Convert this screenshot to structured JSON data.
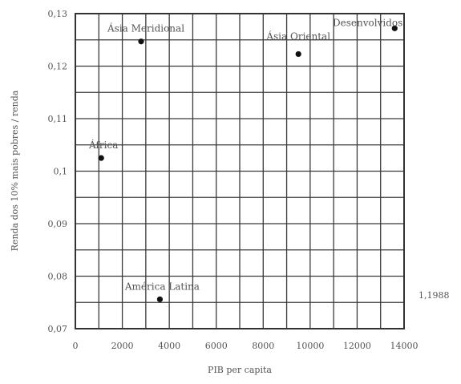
{
  "chart_data": {
    "type": "scatter",
    "title": "",
    "xlabel": "PIB per capita",
    "ylabel": "Renda dos 10% mais pobres / renda",
    "xlim": [
      0,
      14000
    ],
    "ylim": [
      0.07,
      0.13
    ],
    "x_ticks": [
      0,
      2000,
      4000,
      6000,
      8000,
      10000,
      12000,
      14000
    ],
    "x_tick_labels": [
      "0",
      "2000",
      "4000",
      "6000",
      "8000",
      "10000",
      "12000",
      "14000"
    ],
    "y_ticks": [
      0.07,
      0.08,
      0.09,
      0.1,
      0.11,
      0.12,
      0.13
    ],
    "y_tick_labels": [
      "0,07",
      "0,08",
      "0,09",
      "0,1",
      "0,11",
      "0,12",
      "0,13"
    ],
    "grid": true,
    "points": [
      {
        "label": "África",
        "x": 1100,
        "y": 0.1025
      },
      {
        "label": "Ásia Meridional",
        "x": 2800,
        "y": 0.1247
      },
      {
        "label": "América Latina",
        "x": 3600,
        "y": 0.0756
      },
      {
        "label": "Ásia Oriental",
        "x": 9500,
        "y": 0.1223
      },
      {
        "label": "Desenvolvidos",
        "x": 13600,
        "y": 0.1272
      }
    ],
    "annotation": "1,1988"
  }
}
